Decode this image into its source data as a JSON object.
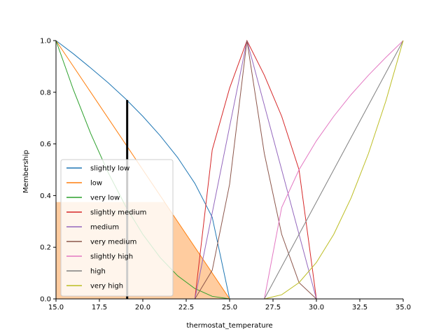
{
  "chart_data": {
    "type": "line",
    "xlabel": "thermostat_temperature",
    "ylabel": "Membership",
    "xlim": [
      15,
      35
    ],
    "ylim": [
      0,
      1
    ],
    "x_ticks": [
      "15.0",
      "17.5",
      "20.0",
      "22.5",
      "25.0",
      "27.5",
      "30.0",
      "32.5",
      "35.0"
    ],
    "y_ticks": [
      "0.0",
      "0.2",
      "0.4",
      "0.6",
      "0.8",
      "1.0"
    ],
    "grid": false,
    "legend_position": "lower-left",
    "series": [
      {
        "name": "slightly low",
        "color": "#1f77b4",
        "x": [
          15,
          16,
          17,
          18,
          19,
          20,
          21,
          22,
          23,
          24,
          25
        ],
        "y": [
          1.0,
          0.949,
          0.894,
          0.837,
          0.775,
          0.707,
          0.632,
          0.548,
          0.447,
          0.316,
          0.0
        ]
      },
      {
        "name": "low",
        "color": "#ff7f0e",
        "x": [
          15,
          25
        ],
        "y": [
          1.0,
          0.0
        ]
      },
      {
        "name": "very low",
        "color": "#2ca02c",
        "x": [
          15,
          16,
          17,
          18,
          19,
          20,
          21,
          22,
          23,
          24,
          25
        ],
        "y": [
          1.0,
          0.81,
          0.64,
          0.49,
          0.36,
          0.25,
          0.16,
          0.09,
          0.04,
          0.01,
          0.0
        ]
      },
      {
        "name": "slightly medium",
        "color": "#d62728",
        "x": [
          23,
          24,
          25,
          26,
          27,
          28,
          29,
          30
        ],
        "y": [
          0.0,
          0.577,
          0.816,
          1.0,
          0.866,
          0.707,
          0.5,
          0.0
        ]
      },
      {
        "name": "medium",
        "color": "#9467bd",
        "x": [
          23,
          26,
          30
        ],
        "y": [
          0.0,
          1.0,
          0.0
        ]
      },
      {
        "name": "very medium",
        "color": "#8c564b",
        "x": [
          23,
          24,
          25,
          26,
          27,
          28,
          29,
          30
        ],
        "y": [
          0.0,
          0.111,
          0.444,
          1.0,
          0.563,
          0.25,
          0.063,
          0.0
        ]
      },
      {
        "name": "slightly high",
        "color": "#e377c2",
        "x": [
          27,
          28,
          29,
          30,
          31,
          32,
          33,
          34,
          35
        ],
        "y": [
          0.0,
          0.354,
          0.5,
          0.612,
          0.707,
          0.791,
          0.866,
          0.935,
          1.0
        ]
      },
      {
        "name": "high",
        "color": "#7f7f7f",
        "x": [
          27,
          35
        ],
        "y": [
          0.0,
          1.0
        ]
      },
      {
        "name": "very high",
        "color": "#bcbd22",
        "x": [
          27,
          28,
          29,
          30,
          31,
          32,
          33,
          34,
          35
        ],
        "y": [
          0.0,
          0.016,
          0.063,
          0.141,
          0.25,
          0.391,
          0.563,
          0.766,
          1.0
        ]
      }
    ],
    "activation": {
      "x": 19.1,
      "height": 0.77,
      "fill_level": 0.375,
      "fill_color": "#ff7f0e",
      "marker_color": "#000000"
    }
  }
}
